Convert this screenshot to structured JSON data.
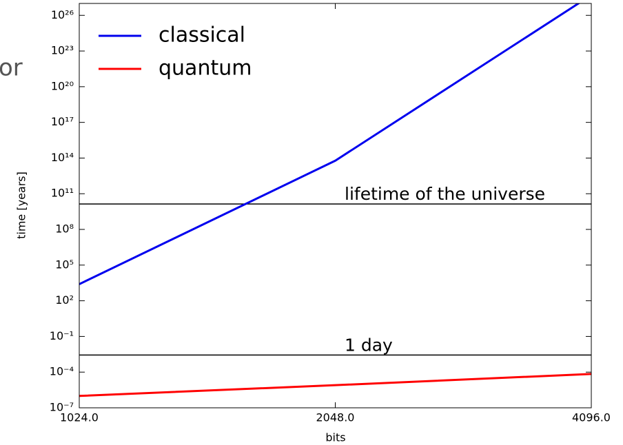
{
  "stray_text": "or",
  "chart_data": {
    "type": "line",
    "xlabel": "bits",
    "ylabel": "time [years]",
    "x": [
      1024,
      2048,
      4096
    ],
    "series": [
      {
        "name": "classical",
        "color": "#0000ee",
        "values": [
          2500,
          60000000000000,
          5e+27
        ]
      },
      {
        "name": "quantum",
        "color": "#ff0000",
        "values": [
          1e-06,
          8e-06,
          7e-05
        ]
      }
    ],
    "hlines": [
      {
        "value": 13800000000,
        "label": "lifetime of the universe",
        "color": "#000000"
      },
      {
        "value": 0.00274,
        "label": "1 day",
        "color": "#000000"
      }
    ],
    "xscale": "log2",
    "yscale": "log",
    "xlim": [
      1024,
      4096
    ],
    "ylim": [
      1e-07,
      1e+27
    ],
    "xticks": [
      {
        "value": 1024,
        "label": "1024.0"
      },
      {
        "value": 2048,
        "label": "2048.0"
      },
      {
        "value": 4096,
        "label": "4096.0"
      }
    ],
    "yticks": [
      {
        "value": 1e-07,
        "label": "10⁻⁷"
      },
      {
        "value": 0.0001,
        "label": "10⁻⁴"
      },
      {
        "value": 0.1,
        "label": "10⁻¹"
      },
      {
        "value": 100,
        "label": "10²"
      },
      {
        "value": 100000,
        "label": "10⁵"
      },
      {
        "value": 100000000,
        "label": "10⁸"
      },
      {
        "value": 100000000000,
        "label": "10¹¹"
      },
      {
        "value": 100000000000000,
        "label": "10¹⁴"
      },
      {
        "value": 1e+17,
        "label": "10¹⁷"
      },
      {
        "value": 1e+20,
        "label": "10²⁰"
      },
      {
        "value": 1e+23,
        "label": "10²³"
      },
      {
        "value": 1e+26,
        "label": "10²⁶"
      }
    ],
    "legend": "upper left",
    "grid": false
  }
}
